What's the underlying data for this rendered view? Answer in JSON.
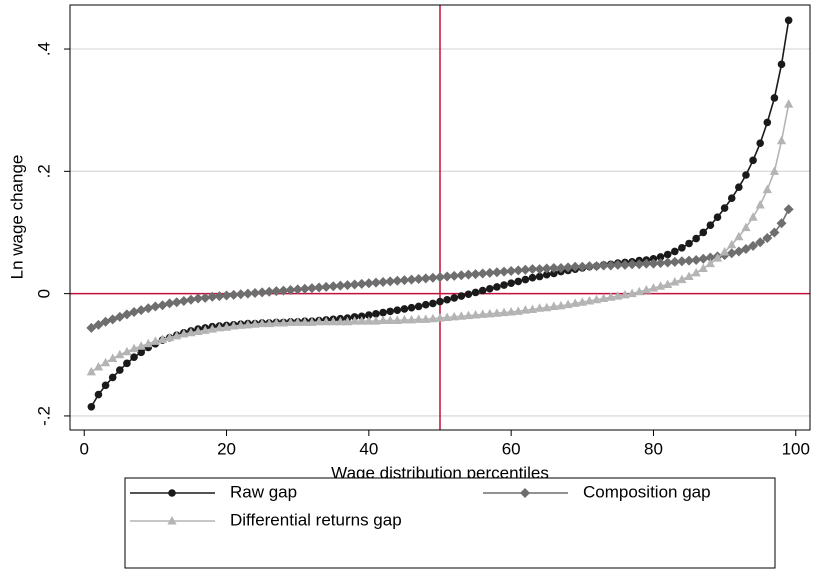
{
  "chart_data": {
    "type": "line",
    "ylabel": "Ln wage change",
    "xlabel": "Wage distribution percentiles",
    "x": [
      1,
      2,
      3,
      4,
      5,
      6,
      7,
      8,
      9,
      10,
      11,
      12,
      13,
      14,
      15,
      16,
      17,
      18,
      19,
      20,
      21,
      22,
      23,
      24,
      25,
      26,
      27,
      28,
      29,
      30,
      31,
      32,
      33,
      34,
      35,
      36,
      37,
      38,
      39,
      40,
      41,
      42,
      43,
      44,
      45,
      46,
      47,
      48,
      49,
      50,
      51,
      52,
      53,
      54,
      55,
      56,
      57,
      58,
      59,
      60,
      61,
      62,
      63,
      64,
      65,
      66,
      67,
      68,
      69,
      70,
      71,
      72,
      73,
      74,
      75,
      76,
      77,
      78,
      79,
      80,
      81,
      82,
      83,
      84,
      85,
      86,
      87,
      88,
      89,
      90,
      91,
      92,
      93,
      94,
      95,
      96,
      97,
      98,
      99
    ],
    "series": [
      {
        "name": "Raw gap",
        "color": "#1a1a1a",
        "marker": "circle",
        "values": [
          -0.185,
          -0.165,
          -0.15,
          -0.137,
          -0.125,
          -0.114,
          -0.104,
          -0.096,
          -0.088,
          -0.082,
          -0.076,
          -0.072,
          -0.068,
          -0.064,
          -0.061,
          -0.058,
          -0.056,
          -0.054,
          -0.053,
          -0.052,
          -0.051,
          -0.05,
          -0.049,
          -0.049,
          -0.048,
          -0.048,
          -0.047,
          -0.047,
          -0.046,
          -0.046,
          -0.045,
          -0.045,
          -0.044,
          -0.043,
          -0.042,
          -0.041,
          -0.04,
          -0.038,
          -0.037,
          -0.035,
          -0.033,
          -0.031,
          -0.029,
          -0.027,
          -0.025,
          -0.023,
          -0.021,
          -0.018,
          -0.016,
          -0.013,
          -0.01,
          -0.007,
          -0.004,
          -0.001,
          0.002,
          0.005,
          0.008,
          0.011,
          0.014,
          0.017,
          0.02,
          0.023,
          0.026,
          0.028,
          0.031,
          0.033,
          0.036,
          0.038,
          0.04,
          0.042,
          0.044,
          0.045,
          0.047,
          0.048,
          0.05,
          0.051,
          0.052,
          0.054,
          0.055,
          0.057,
          0.06,
          0.064,
          0.069,
          0.075,
          0.082,
          0.09,
          0.1,
          0.112,
          0.125,
          0.14,
          0.156,
          0.174,
          0.194,
          0.218,
          0.246,
          0.28,
          0.32,
          0.375,
          0.447
        ]
      },
      {
        "name": "Composition gap",
        "color": "#6e6e6e",
        "marker": "diamond",
        "values": [
          -0.056,
          -0.051,
          -0.046,
          -0.042,
          -0.038,
          -0.034,
          -0.03,
          -0.027,
          -0.024,
          -0.021,
          -0.019,
          -0.016,
          -0.014,
          -0.012,
          -0.01,
          -0.008,
          -0.007,
          -0.005,
          -0.004,
          -0.003,
          -0.002,
          -0.001,
          0.0,
          0.001,
          0.002,
          0.003,
          0.004,
          0.005,
          0.006,
          0.007,
          0.008,
          0.009,
          0.01,
          0.011,
          0.012,
          0.013,
          0.014,
          0.015,
          0.016,
          0.017,
          0.018,
          0.019,
          0.02,
          0.021,
          0.022,
          0.023,
          0.024,
          0.025,
          0.026,
          0.027,
          0.028,
          0.029,
          0.03,
          0.031,
          0.032,
          0.033,
          0.034,
          0.035,
          0.036,
          0.037,
          0.038,
          0.039,
          0.04,
          0.04,
          0.041,
          0.042,
          0.042,
          0.043,
          0.044,
          0.044,
          0.045,
          0.045,
          0.046,
          0.046,
          0.047,
          0.047,
          0.048,
          0.048,
          0.049,
          0.049,
          0.05,
          0.051,
          0.052,
          0.053,
          0.054,
          0.055,
          0.057,
          0.059,
          0.061,
          0.063,
          0.066,
          0.069,
          0.073,
          0.078,
          0.084,
          0.091,
          0.1,
          0.115,
          0.138
        ]
      },
      {
        "name": "Differential returns gap",
        "color": "#b4b4b4",
        "marker": "triangle",
        "values": [
          -0.128,
          -0.12,
          -0.113,
          -0.106,
          -0.1,
          -0.095,
          -0.09,
          -0.086,
          -0.082,
          -0.078,
          -0.075,
          -0.072,
          -0.069,
          -0.066,
          -0.064,
          -0.062,
          -0.06,
          -0.058,
          -0.056,
          -0.055,
          -0.053,
          -0.052,
          -0.051,
          -0.05,
          -0.049,
          -0.049,
          -0.048,
          -0.048,
          -0.047,
          -0.047,
          -0.047,
          -0.047,
          -0.046,
          -0.046,
          -0.046,
          -0.046,
          -0.046,
          -0.045,
          -0.045,
          -0.045,
          -0.045,
          -0.044,
          -0.044,
          -0.044,
          -0.043,
          -0.043,
          -0.042,
          -0.042,
          -0.041,
          -0.04,
          -0.039,
          -0.038,
          -0.037,
          -0.036,
          -0.035,
          -0.034,
          -0.033,
          -0.032,
          -0.031,
          -0.03,
          -0.029,
          -0.027,
          -0.026,
          -0.024,
          -0.023,
          -0.021,
          -0.02,
          -0.018,
          -0.016,
          -0.014,
          -0.012,
          -0.01,
          -0.008,
          -0.006,
          -0.004,
          -0.002,
          0.0,
          0.003,
          0.006,
          0.009,
          0.012,
          0.015,
          0.019,
          0.023,
          0.028,
          0.034,
          0.041,
          0.049,
          0.058,
          0.068,
          0.08,
          0.093,
          0.108,
          0.125,
          0.145,
          0.17,
          0.2,
          0.25,
          0.31
        ]
      }
    ],
    "xlim": [
      -2,
      102
    ],
    "xticks": [
      0,
      20,
      40,
      60,
      80,
      100
    ],
    "ylim": [
      -0.223,
      0.472
    ],
    "yticks": [
      {
        "value": -0.2,
        "label": "-.2"
      },
      {
        "value": 0,
        "label": "0"
      },
      {
        "value": 0.2,
        "label": ".2"
      },
      {
        "value": 0.4,
        "label": ".4"
      }
    ],
    "xline": 50,
    "yline": 0,
    "refline_color": "#c0103c",
    "grid": true,
    "legend": "bottom"
  }
}
